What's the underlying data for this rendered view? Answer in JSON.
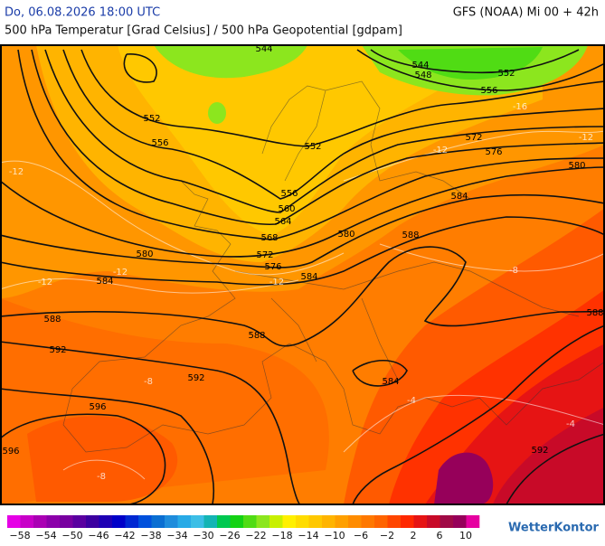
{
  "header": {
    "datetime": "Do, 06.08.2026 18:00 UTC",
    "model": "GFS (NOAA) Mi 00 + 42h",
    "title": "500 hPa Temperatur [Grad Celsius] / 500 hPa Geopotential [gdpam]"
  },
  "map": {
    "geopotential_labels": [
      544,
      544,
      548,
      552,
      556,
      552,
      556,
      552,
      572,
      576,
      580,
      556,
      584,
      560,
      564,
      568,
      580,
      588,
      580,
      572,
      576,
      584,
      584,
      588,
      588,
      592,
      588,
      592,
      584,
      596,
      596,
      592
    ],
    "temperature_labels": [
      "-12",
      "-12",
      "-12",
      "-12",
      "-12",
      "-12",
      "-16",
      "-8",
      "-8",
      "-8",
      "-4",
      "-4"
    ]
  },
  "legend": {
    "labels": [
      "−58",
      "−54",
      "−50",
      "−46",
      "−42",
      "−38",
      "−34",
      "−30",
      "−26",
      "−22",
      "−18",
      "−14",
      "−10",
      "−6",
      "−2",
      "2",
      "6",
      "10"
    ],
    "colors": [
      "#e600e6",
      "#c800c8",
      "#aa00b4",
      "#8c00aa",
      "#7800a0",
      "#5a00a0",
      "#3c00a0",
      "#1e00b4",
      "#0000c8",
      "#0028d2",
      "#0050dc",
      "#0a6ed2",
      "#1e8cdc",
      "#28aae6",
      "#3cbee6",
      "#14b4b4",
      "#00c850",
      "#14d214",
      "#50dc14",
      "#8ce61e",
      "#c8f000",
      "#fff000",
      "#ffdc00",
      "#ffc800",
      "#ffb400",
      "#ffa000",
      "#ff8c00",
      "#ff7800",
      "#ff6400",
      "#ff4600",
      "#ff2800",
      "#e61414",
      "#c80a28",
      "#a00a46",
      "#96005a",
      "#e600a0"
    ]
  },
  "logo": "WetterKontor"
}
